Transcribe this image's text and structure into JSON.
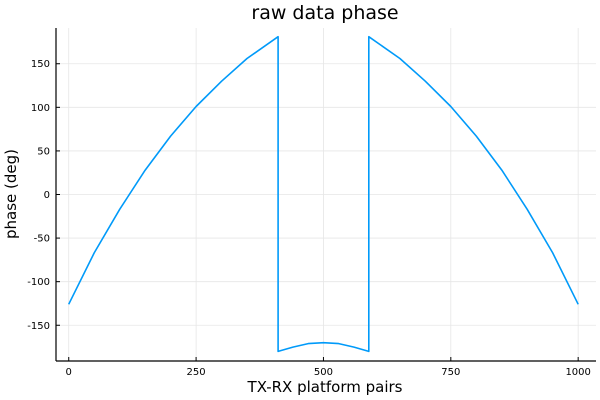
{
  "chart_data": {
    "type": "line",
    "title": "raw data phase",
    "xlabel": "TX-RX platform pairs",
    "ylabel": "phase (deg)",
    "xlim": [
      -25,
      1035
    ],
    "ylim": [
      -191,
      191
    ],
    "xticks": [
      0,
      250,
      500,
      750,
      1000
    ],
    "yticks": [
      -150,
      -100,
      -50,
      0,
      50,
      100,
      150
    ],
    "grid": true,
    "legend": false,
    "series": [
      {
        "color": "#009af9",
        "x": [
          0,
          50,
          100,
          150,
          200,
          250,
          300,
          350,
          411,
          411,
          440,
          470,
          500,
          530,
          560,
          589,
          589,
          650,
          700,
          750,
          800,
          850,
          900,
          950,
          1000
        ],
        "y": [
          -126,
          -67,
          -17,
          28,
          67,
          101,
          130,
          156,
          181,
          -180,
          -175,
          -171,
          -170,
          -171,
          -175,
          -180,
          181,
          156,
          130,
          101,
          67,
          28,
          -17,
          -67,
          -126
        ]
      }
    ]
  }
}
